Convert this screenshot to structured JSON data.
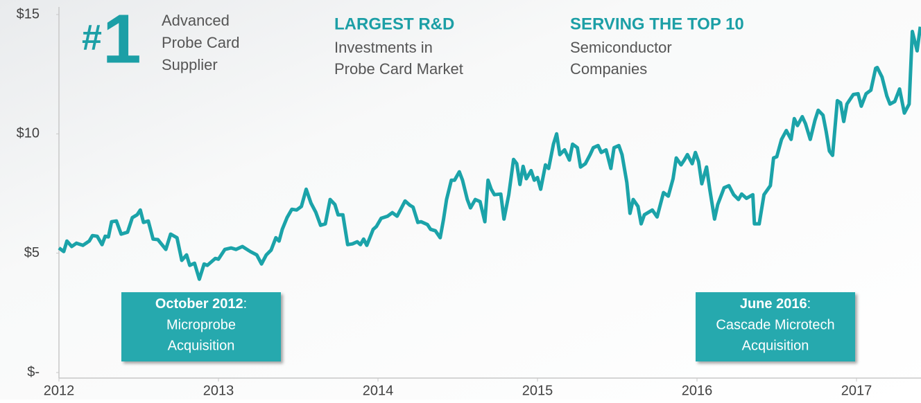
{
  "chart_data": {
    "type": "line",
    "x": [
      2012.0,
      2012.03,
      2012.05,
      2012.08,
      2012.11,
      2012.15,
      2012.19,
      2012.21,
      2012.24,
      2012.27,
      2012.29,
      2012.31,
      2012.33,
      2012.36,
      2012.39,
      2012.43,
      2012.46,
      2012.49,
      2012.51,
      2012.53,
      2012.56,
      2012.59,
      2012.62,
      2012.67,
      2012.7,
      2012.74,
      2012.77,
      2012.8,
      2012.82,
      2012.85,
      2012.88,
      2012.91,
      2012.93,
      2012.98,
      2013.0,
      2013.04,
      2013.08,
      2013.11,
      2013.15,
      2013.2,
      2013.24,
      2013.27,
      2013.3,
      2013.33,
      2013.36,
      2013.38,
      2013.4,
      2013.43,
      2013.46,
      2013.49,
      2013.52,
      2013.55,
      2013.58,
      2013.61,
      2013.64,
      2013.67,
      2013.7,
      2013.73,
      2013.75,
      2013.78,
      2013.81,
      2013.84,
      2013.87,
      2013.89,
      2013.91,
      2013.93,
      2013.97,
      2013.99,
      2014.02,
      2014.06,
      2014.09,
      2014.12,
      2014.17,
      2014.2,
      2014.22,
      2014.25,
      2014.27,
      2014.31,
      2014.33,
      2014.36,
      2014.39,
      2014.41,
      2014.43,
      2014.46,
      2014.48,
      2014.51,
      2014.53,
      2014.56,
      2014.58,
      2014.61,
      2014.64,
      2014.67,
      2014.69,
      2014.71,
      2014.73,
      2014.77,
      2014.79,
      2014.82,
      2014.85,
      2014.87,
      2014.89,
      2014.91,
      2014.93,
      2014.96,
      2014.98,
      2015.0,
      2015.02,
      2015.05,
      2015.07,
      2015.1,
      2015.12,
      2015.14,
      2015.17,
      2015.2,
      2015.22,
      2015.25,
      2015.27,
      2015.3,
      2015.33,
      2015.35,
      2015.38,
      2015.4,
      2015.43,
      2015.46,
      2015.48,
      2015.51,
      2015.53,
      2015.56,
      2015.58,
      2015.6,
      2015.63,
      2015.65,
      2015.67,
      2015.72,
      2015.75,
      2015.79,
      2015.82,
      2015.85,
      2015.87,
      2015.9,
      2015.92,
      2015.94,
      2015.97,
      2015.99,
      2016.01,
      2016.03,
      2016.06,
      2016.08,
      2016.11,
      2016.13,
      2016.17,
      2016.2,
      2016.23,
      2016.26,
      2016.28,
      2016.31,
      2016.35,
      2016.36,
      2016.39,
      2016.42,
      2016.46,
      2016.48,
      2016.5,
      2016.53,
      2016.56,
      2016.59,
      2016.61,
      2016.63,
      2016.66,
      2016.68,
      2016.71,
      2016.74,
      2016.76,
      2016.79,
      2016.81,
      2016.83,
      2016.85,
      2016.88,
      2016.9,
      2016.92,
      2016.94,
      2016.98,
      2017.01,
      2017.03,
      2017.06,
      2017.09,
      2017.12,
      2017.13,
      2017.16,
      2017.19,
      2017.21,
      2017.24,
      2017.27,
      2017.3,
      2017.33,
      2017.35,
      2017.38,
      2017.4
    ],
    "series": [
      {
        "color": "#1ba3a9",
        "values": [
          5.22,
          5.07,
          5.51,
          5.28,
          5.42,
          5.33,
          5.51,
          5.74,
          5.71,
          5.36,
          5.71,
          5.68,
          6.32,
          6.35,
          5.8,
          5.88,
          6.49,
          6.61,
          6.81,
          6.29,
          6.35,
          5.59,
          5.57,
          5.16,
          5.8,
          5.65,
          4.7,
          4.93,
          4.49,
          4.58,
          3.91,
          4.55,
          4.49,
          4.78,
          4.75,
          5.16,
          5.22,
          5.16,
          5.28,
          5.07,
          4.93,
          4.55,
          4.93,
          5.13,
          5.65,
          5.51,
          6.0,
          6.49,
          6.84,
          6.81,
          6.96,
          7.68,
          7.1,
          6.72,
          6.17,
          6.23,
          7.25,
          7.04,
          6.61,
          6.61,
          5.36,
          5.39,
          5.48,
          5.36,
          5.59,
          5.33,
          6.0,
          6.12,
          6.46,
          6.55,
          6.7,
          6.55,
          7.19,
          7.01,
          6.93,
          6.29,
          6.32,
          6.2,
          6.0,
          5.94,
          5.65,
          6.38,
          7.25,
          8.06,
          8.06,
          8.41,
          8.06,
          7.25,
          6.9,
          7.25,
          7.16,
          6.32,
          8.06,
          7.68,
          7.45,
          7.48,
          6.43,
          7.45,
          8.93,
          8.75,
          7.88,
          8.64,
          8.12,
          8.46,
          8.06,
          8.17,
          7.68,
          8.7,
          8.55,
          9.57,
          10.0,
          9.13,
          9.33,
          8.9,
          9.57,
          9.42,
          8.61,
          8.75,
          9.13,
          9.42,
          9.51,
          9.22,
          9.33,
          8.55,
          9.42,
          9.51,
          9.13,
          7.97,
          6.67,
          7.25,
          6.96,
          6.23,
          6.61,
          6.81,
          6.52,
          7.54,
          7.39,
          8.12,
          8.99,
          8.7,
          8.9,
          9.13,
          8.75,
          9.22,
          8.84,
          7.91,
          8.61,
          7.68,
          6.43,
          7.04,
          7.74,
          7.83,
          7.45,
          7.25,
          7.48,
          7.3,
          7.45,
          6.23,
          6.23,
          7.45,
          7.83,
          8.99,
          9.04,
          9.77,
          10.14,
          9.77,
          10.64,
          10.35,
          10.72,
          10.43,
          9.77,
          10.58,
          10.99,
          10.78,
          10.09,
          9.28,
          9.1,
          11.39,
          11.3,
          10.52,
          11.25,
          11.65,
          11.68,
          11.16,
          11.68,
          11.83,
          12.75,
          12.78,
          12.38,
          11.59,
          11.25,
          11.36,
          11.88,
          10.87,
          11.25,
          14.29,
          13.48,
          14.49
        ]
      }
    ],
    "xlim": [
      2012,
      2017.4
    ],
    "xticks": [
      2012,
      2013,
      2014,
      2015,
      2016,
      2017
    ],
    "ylim": [
      0,
      15
    ],
    "yticks": [
      {
        "value": 0,
        "label": "$-"
      },
      {
        "value": 5,
        "label": "$5"
      },
      {
        "value": 10,
        "label": "$10"
      },
      {
        "value": 15,
        "label": "$15"
      }
    ]
  },
  "badge": {
    "hash": "#",
    "number": "1",
    "lines": [
      "Advanced",
      "Probe Card",
      "Supplier"
    ]
  },
  "highlights": [
    {
      "heading": "LARGEST R&D",
      "lines": [
        "Investments in",
        "Probe Card Market"
      ]
    },
    {
      "heading": "SERVING THE TOP 10",
      "lines": [
        "Semiconductor",
        "Companies"
      ]
    }
  ],
  "callouts": [
    {
      "date": "October 2012",
      "punct": ":",
      "lines": [
        "Microprobe",
        "Acquisition"
      ]
    },
    {
      "date": "June 2016",
      "punct": ":",
      "lines": [
        "Cascade Microtech",
        "Acquisition"
      ]
    }
  ]
}
